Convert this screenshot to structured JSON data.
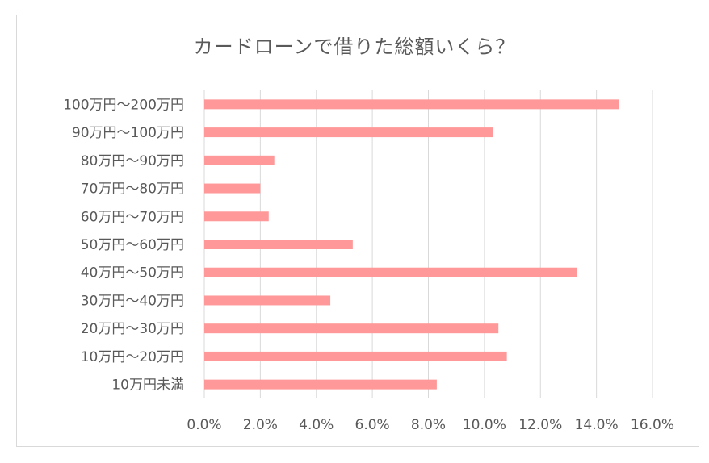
{
  "chart_data": {
    "type": "bar",
    "orientation": "horizontal",
    "title": "カードローンで借りた総額いくら？",
    "categories": [
      "100万円〜200万円",
      "90万円〜100万円",
      "80万円〜90万円",
      "70万円〜80万円",
      "60万円〜70万円",
      "50万円〜60万円",
      "40万円〜50万円",
      "30万円〜40万円",
      "20万円〜30万円",
      "10万円〜20万円",
      "10万円未満"
    ],
    "values": [
      14.8,
      10.3,
      2.5,
      2.0,
      2.3,
      5.3,
      13.3,
      4.5,
      10.5,
      10.8,
      8.3
    ],
    "xlim": [
      0,
      16
    ],
    "xticks": [
      "0.0%",
      "2.0%",
      "4.0%",
      "6.0%",
      "8.0%",
      "10.0%",
      "12.0%",
      "14.0%",
      "16.0%"
    ],
    "grid": true,
    "bar_color": "#ff9999",
    "grid_color": "#d9d9d9"
  }
}
